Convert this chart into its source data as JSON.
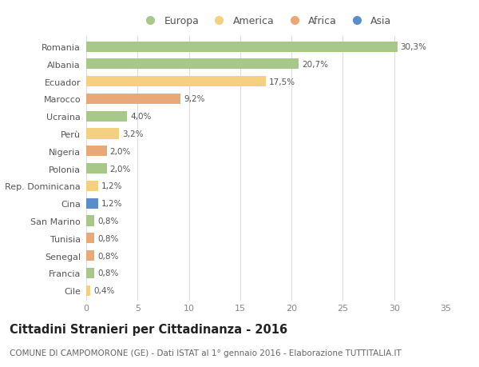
{
  "categories": [
    "Romania",
    "Albania",
    "Ecuador",
    "Marocco",
    "Ucraina",
    "Perù",
    "Nigeria",
    "Polonia",
    "Rep. Dominicana",
    "Cina",
    "San Marino",
    "Tunisia",
    "Senegal",
    "Francia",
    "Cile"
  ],
  "values": [
    30.3,
    20.7,
    17.5,
    9.2,
    4.0,
    3.2,
    2.0,
    2.0,
    1.2,
    1.2,
    0.8,
    0.8,
    0.8,
    0.8,
    0.4
  ],
  "labels": [
    "30,3%",
    "20,7%",
    "17,5%",
    "9,2%",
    "4,0%",
    "3,2%",
    "2,0%",
    "2,0%",
    "1,2%",
    "1,2%",
    "0,8%",
    "0,8%",
    "0,8%",
    "0,8%",
    "0,4%"
  ],
  "continents": [
    "Europa",
    "Europa",
    "America",
    "Africa",
    "Europa",
    "America",
    "Africa",
    "Europa",
    "America",
    "Asia",
    "Europa",
    "Africa",
    "Africa",
    "Europa",
    "America"
  ],
  "colors": {
    "Europa": "#a8c88a",
    "America": "#f5d080",
    "Africa": "#e8a878",
    "Asia": "#5b8dc8"
  },
  "legend_order": [
    "Europa",
    "America",
    "Africa",
    "Asia"
  ],
  "title": "Cittadini Stranieri per Cittadinanza - 2016",
  "subtitle": "COMUNE DI CAMPOMORONE (GE) - Dati ISTAT al 1° gennaio 2016 - Elaborazione TUTTITALIA.IT",
  "xlim": [
    0,
    35
  ],
  "xticks": [
    0,
    5,
    10,
    15,
    20,
    25,
    30,
    35
  ],
  "background_color": "#ffffff",
  "grid_color": "#dddddd",
  "bar_height": 0.6,
  "title_fontsize": 10.5,
  "subtitle_fontsize": 7.5,
  "label_fontsize": 7.5,
  "tick_fontsize": 8,
  "legend_fontsize": 9
}
